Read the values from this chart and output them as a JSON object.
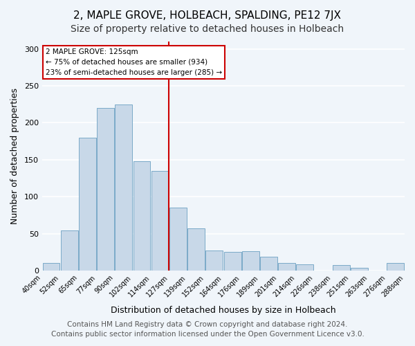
{
  "title": "2, MAPLE GROVE, HOLBEACH, SPALDING, PE12 7JX",
  "subtitle": "Size of property relative to detached houses in Holbeach",
  "xlabel": "Distribution of detached houses by size in Holbeach",
  "ylabel": "Number of detached properties",
  "bar_labels": [
    "40sqm",
    "52sqm",
    "65sqm",
    "77sqm",
    "90sqm",
    "102sqm",
    "114sqm",
    "127sqm",
    "139sqm",
    "152sqm",
    "164sqm",
    "176sqm",
    "189sqm",
    "201sqm",
    "214sqm",
    "226sqm",
    "238sqm",
    "251sqm",
    "263sqm",
    "276sqm",
    "288sqm"
  ],
  "bar_values": [
    10,
    54,
    180,
    220,
    225,
    148,
    135,
    85,
    57,
    27,
    25,
    26,
    19,
    10,
    9,
    0,
    8,
    4,
    0,
    10
  ],
  "bar_color": "#c8d8e8",
  "bar_edge_color": "#7aaac8",
  "highlight_x_label": "127sqm",
  "highlight_line_color": "#cc0000",
  "annotation_text": "2 MAPLE GROVE: 125sqm\n← 75% of detached houses are smaller (934)\n23% of semi-detached houses are larger (285) →",
  "annotation_box_color": "#ffffff",
  "annotation_box_edge_color": "#cc0000",
  "ylim": [
    0,
    310
  ],
  "yticks": [
    0,
    50,
    100,
    150,
    200,
    250,
    300
  ],
  "footer_line1": "Contains HM Land Registry data © Crown copyright and database right 2024.",
  "footer_line2": "Contains public sector information licensed under the Open Government Licence v3.0.",
  "background_color": "#f0f5fa",
  "grid_color": "#ffffff",
  "title_fontsize": 11,
  "subtitle_fontsize": 10,
  "xlabel_fontsize": 9,
  "ylabel_fontsize": 9,
  "footer_fontsize": 7.5
}
